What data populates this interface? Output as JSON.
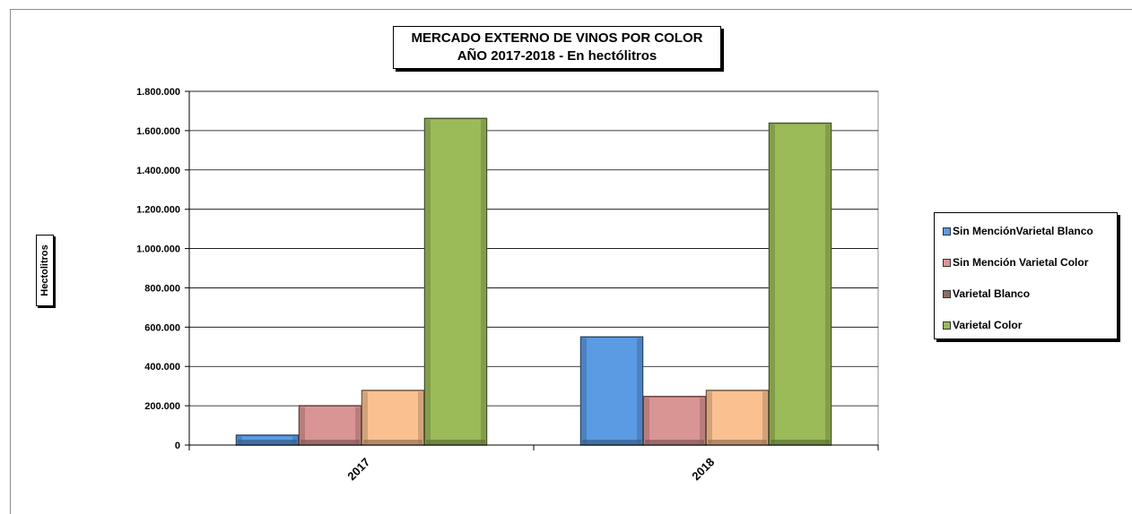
{
  "chart_data": {
    "type": "bar",
    "title_lines": [
      "MERCADO EXTERNO DE VINOS POR COLOR",
      "AÑO 2017-2018 - En hectólitros"
    ],
    "ylabel": "Hectolitros",
    "xlabel": "",
    "categories": [
      "2017",
      "2018"
    ],
    "ylim": [
      0,
      1800000
    ],
    "yticks": [
      0,
      200000,
      400000,
      600000,
      800000,
      1000000,
      1200000,
      1400000,
      1600000,
      1800000
    ],
    "ytick_labels": [
      "0",
      "200.000",
      "400.000",
      "600.000",
      "800.000",
      "1.000.000",
      "1.200.000",
      "1.400.000",
      "1.600.000",
      "1.800.000"
    ],
    "grid": true,
    "legend_position": "right",
    "series": [
      {
        "name": "Sin MenciónVarietal Blanco",
        "color": "#5b9be3",
        "values": [
          50000,
          550000
        ]
      },
      {
        "name": "Sin Mención Varietal Color",
        "color": "#d99594",
        "values": [
          200000,
          247000
        ]
      },
      {
        "name": "Varietal Blanco",
        "color": "#fac090",
        "legend_color": "#8b6e63",
        "values": [
          278000,
          278000
        ]
      },
      {
        "name": "Varietal Color",
        "color": "#9bbb59",
        "values": [
          1662000,
          1638000
        ]
      }
    ]
  }
}
